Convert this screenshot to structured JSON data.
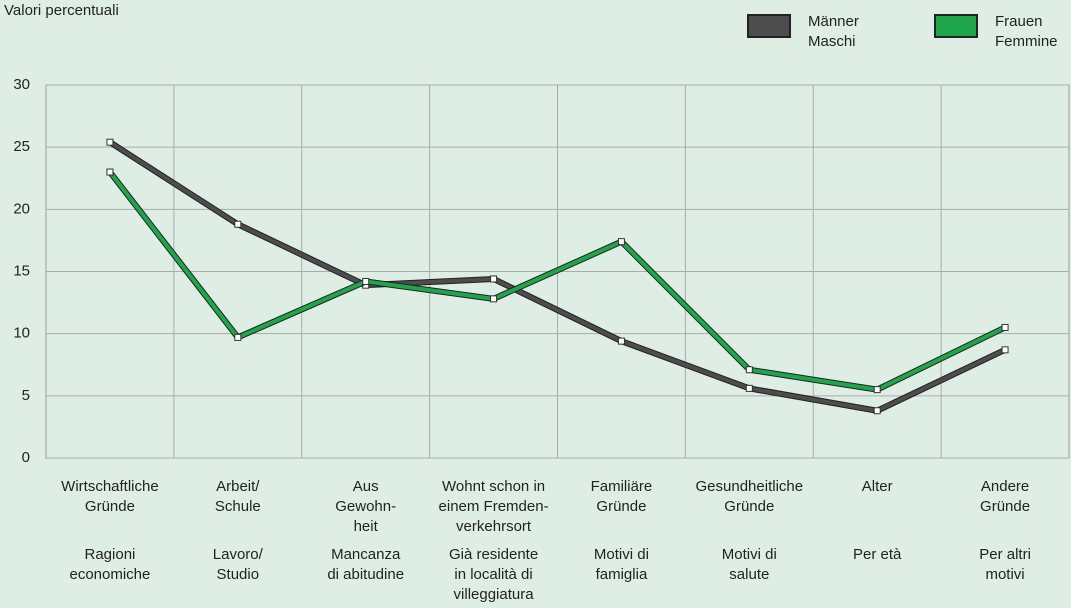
{
  "chart_data": {
    "type": "line",
    "y_label": "Valori percentuali",
    "categories": [
      "Wirtschaftliche\nGründe",
      "Arbeit/\nSchule",
      "Aus\nGewohn-\nheit",
      "Wohnt schon in\neinem Fremden-\nverkehrsort",
      "Familiäre\nGründe",
      "Gesundheitliche\nGründe",
      "Alter",
      "Andere\nGründe"
    ],
    "categories_it": [
      "Ragioni\neconomiche",
      "Lavoro/\nStudio",
      "Mancanza\ndi abitudine",
      "Già residente\nin località di\nvilleggiatura",
      "Motivi di\nfamiglia",
      "Motivi di\nsalute",
      "Per età",
      "Per altri\nmotivi"
    ],
    "series": [
      {
        "name": "Männer\nMaschi",
        "color": "#4d4d4f",
        "values": [
          25.4,
          18.8,
          13.9,
          14.4,
          9.4,
          5.6,
          3.8,
          8.7
        ]
      },
      {
        "name": "Frauen\nFemmine",
        "color": "#1fa64a",
        "values": [
          23.0,
          9.7,
          14.2,
          12.8,
          17.4,
          7.1,
          5.5,
          10.5
        ]
      }
    ],
    "ylim": [
      0,
      30
    ],
    "yticks": [
      0,
      5,
      10,
      15,
      20,
      25,
      30
    ],
    "grid": true
  }
}
